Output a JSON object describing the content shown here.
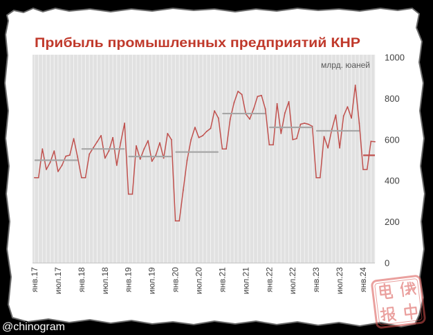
{
  "chart_data": {
    "type": "line",
    "title": "Прибыль промышленных предприятий КНР",
    "unit_label": "млрд. юаней",
    "x": [
      "2017-01",
      "2017-02",
      "2017-03",
      "2017-04",
      "2017-05",
      "2017-06",
      "2017-07",
      "2017-08",
      "2017-09",
      "2017-10",
      "2017-11",
      "2017-12",
      "2018-01",
      "2018-02",
      "2018-03",
      "2018-04",
      "2018-05",
      "2018-06",
      "2018-07",
      "2018-08",
      "2018-09",
      "2018-10",
      "2018-11",
      "2018-12",
      "2019-01",
      "2019-02",
      "2019-03",
      "2019-04",
      "2019-05",
      "2019-06",
      "2019-07",
      "2019-08",
      "2019-09",
      "2019-10",
      "2019-11",
      "2019-12",
      "2020-01",
      "2020-02",
      "2020-03",
      "2020-04",
      "2020-05",
      "2020-06",
      "2020-07",
      "2020-08",
      "2020-09",
      "2020-10",
      "2020-11",
      "2020-12",
      "2021-01",
      "2021-02",
      "2021-03",
      "2021-04",
      "2021-05",
      "2021-06",
      "2021-07",
      "2021-08",
      "2021-09",
      "2021-10",
      "2021-11",
      "2021-12",
      "2022-01",
      "2022-02",
      "2022-03",
      "2022-04",
      "2022-05",
      "2022-06",
      "2022-07",
      "2022-08",
      "2022-09",
      "2022-10",
      "2022-11",
      "2022-12",
      "2023-01",
      "2023-02",
      "2023-03",
      "2023-04",
      "2023-05",
      "2023-06",
      "2023-07",
      "2023-08",
      "2023-09",
      "2023-10",
      "2023-11",
      "2023-12",
      "2024-01",
      "2024-02",
      "2024-03",
      "2024-04"
    ],
    "x_tick_labels": [
      {
        "at": "2017-01",
        "label": "янв.17"
      },
      {
        "at": "2017-07",
        "label": "июл.17"
      },
      {
        "at": "2018-01",
        "label": "янв.18"
      },
      {
        "at": "2018-07",
        "label": "июл.18"
      },
      {
        "at": "2019-01",
        "label": "янв.19"
      },
      {
        "at": "2019-07",
        "label": "июл.19"
      },
      {
        "at": "2020-01",
        "label": "янв.20"
      },
      {
        "at": "2020-07",
        "label": "июл.20"
      },
      {
        "at": "2021-01",
        "label": "янв.21"
      },
      {
        "at": "2021-07",
        "label": "июл.21"
      },
      {
        "at": "2022-01",
        "label": "янв.22"
      },
      {
        "at": "2022-07",
        "label": "июл.22"
      },
      {
        "at": "2023-01",
        "label": "янв.23"
      },
      {
        "at": "2023-07",
        "label": "июл.23"
      },
      {
        "at": "2024-01",
        "label": "янв.24"
      }
    ],
    "series": [
      {
        "color": "#c0504d",
        "values": [
          415,
          415,
          555,
          455,
          490,
          545,
          445,
          475,
          520,
          525,
          605,
          515,
          415,
          415,
          530,
          560,
          590,
          620,
          510,
          545,
          610,
          475,
          585,
          680,
          335,
          335,
          570,
          505,
          555,
          595,
          495,
          525,
          585,
          510,
          630,
          600,
          205,
          205,
          355,
          500,
          600,
          660,
          610,
          620,
          640,
          655,
          740,
          705,
          555,
          555,
          700,
          780,
          835,
          820,
          725,
          700,
          750,
          810,
          815,
          750,
          575,
          575,
          775,
          630,
          730,
          785,
          600,
          605,
          675,
          680,
          675,
          665,
          415,
          415,
          615,
          560,
          650,
          720,
          560,
          715,
          760,
          705,
          865,
          680,
          455,
          455,
          592,
          590
        ]
      }
    ],
    "annual_averages": [
      {
        "from": "2017-01",
        "to": "2017-12",
        "value": 500,
        "color": "#a6a6a6"
      },
      {
        "from": "2018-01",
        "to": "2018-12",
        "value": 555,
        "color": "#a6a6a6"
      },
      {
        "from": "2019-01",
        "to": "2019-12",
        "value": 518,
        "color": "#a6a6a6"
      },
      {
        "from": "2020-01",
        "to": "2020-12",
        "value": 540,
        "color": "#a6a6a6"
      },
      {
        "from": "2021-01",
        "to": "2021-12",
        "value": 727,
        "color": "#a6a6a6"
      },
      {
        "from": "2022-01",
        "to": "2022-12",
        "value": 660,
        "color": "#a6a6a6"
      },
      {
        "from": "2023-01",
        "to": "2023-12",
        "value": 643,
        "color": "#a6a6a6"
      },
      {
        "from": "2024-01",
        "to": "2024-04",
        "value": 524,
        "color": "#c0504d"
      }
    ],
    "y_ticks": [
      0,
      200,
      400,
      600,
      800,
      1000
    ],
    "ylim": [
      0,
      1000
    ],
    "y_axis_position": "right",
    "grid": {
      "vertical": true,
      "horizontal": false
    }
  },
  "title_color": "#c0392b",
  "watermark": "@chinogram",
  "stamp": {
    "characters": [
      "电",
      "俄",
      "报",
      "中"
    ],
    "color": "#d9534f"
  }
}
